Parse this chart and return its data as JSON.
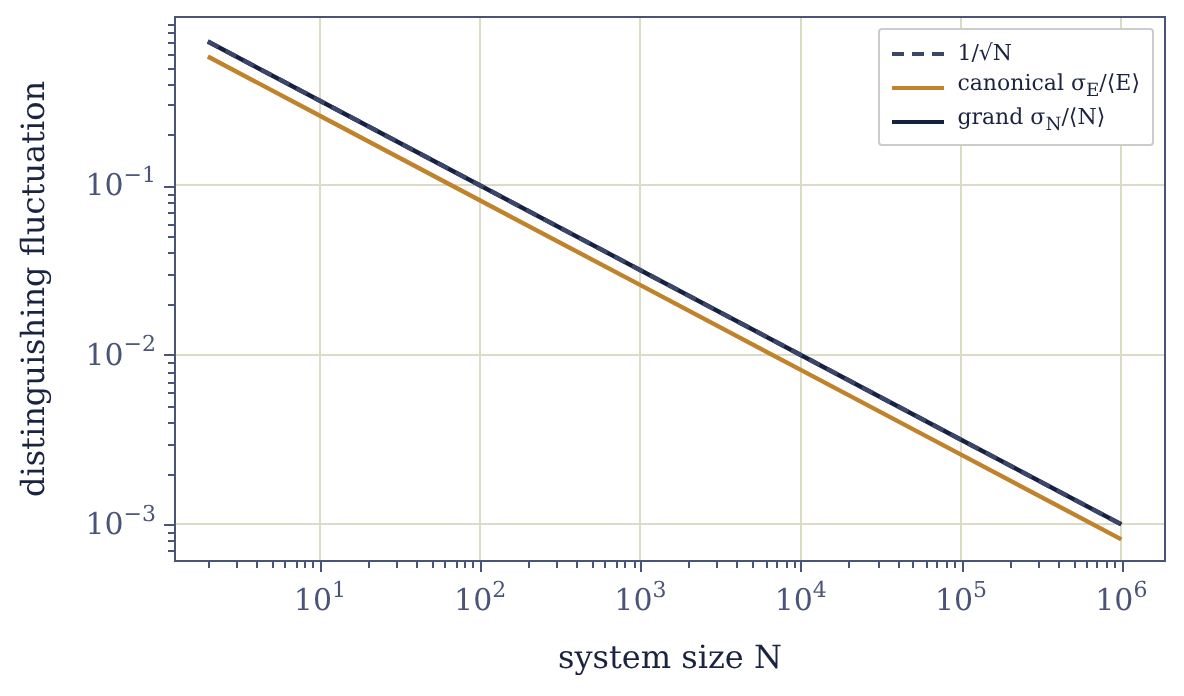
{
  "chart_data": {
    "type": "line",
    "log": "xy",
    "xlabel": "system size N",
    "ylabel": "distinguishing fluctuation",
    "x": [
      2,
      10,
      100,
      1000,
      10000,
      100000,
      1000000
    ],
    "series": [
      {
        "name": "1/√N",
        "color": "#3c4668",
        "line_style": "dashed",
        "values": [
          0.707,
          0.316,
          0.1,
          0.0316,
          0.01,
          0.00316,
          0.001
        ]
      },
      {
        "name": "canonical σ$_{E}$/⟨E⟩",
        "color": "#c0822a",
        "values": [
          0.577,
          0.258,
          0.0816,
          0.0258,
          0.00816,
          0.00258,
          0.000816
        ]
      },
      {
        "name": "grand σ$_{N}$/⟨N⟩",
        "color": "#162040",
        "values": [
          0.707,
          0.316,
          0.1,
          0.0316,
          0.01,
          0.00316,
          0.001
        ]
      }
    ],
    "xlim": [
      1.23,
      1900000
    ],
    "ylim": [
      0.00063,
      1.0
    ],
    "xticks": [
      {
        "value": 10,
        "label": "10$^{1}$"
      },
      {
        "value": 100,
        "label": "10$^{2}$"
      },
      {
        "value": 1000,
        "label": "10$^{3}$"
      },
      {
        "value": 10000,
        "label": "10$^{4}$"
      },
      {
        "value": 100000,
        "label": "10$^{5}$"
      },
      {
        "value": 1000000,
        "label": "10$^{6}$"
      }
    ],
    "yticks": [
      {
        "value": 0.001,
        "label": "10$^{−3}$"
      },
      {
        "value": 0.01,
        "label": "10$^{−2}$"
      },
      {
        "value": 0.1,
        "label": "10$^{−1}$"
      }
    ],
    "grid": true,
    "legend": "top right",
    "line_style": "solid",
    "marker": "none"
  }
}
